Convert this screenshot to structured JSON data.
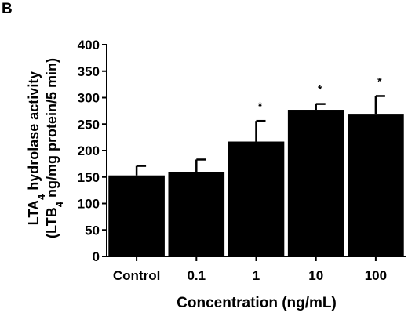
{
  "panel_label": "B",
  "chart_data": {
    "type": "bar",
    "categories": [
      "Control",
      "0.1",
      "1",
      "10",
      "100"
    ],
    "values": [
      153,
      160,
      217,
      277,
      268
    ],
    "errors": [
      18,
      23,
      39,
      11,
      35
    ],
    "significance": [
      "",
      "",
      "*",
      "*",
      "*"
    ],
    "xlabel": "Concentration (ng/mL)",
    "ylabel": {
      "line1_main": "LTA",
      "line1_sub": "4",
      "line1_rest": " hydrolase activity",
      "line2_pre": "(LTB",
      "line2_sub": "4",
      "line2_rest": " ng/mg protein/5 min)"
    },
    "yticks": [
      0,
      50,
      100,
      150,
      200,
      250,
      300,
      350,
      400
    ],
    "ylim": [
      0,
      400
    ],
    "grid": false,
    "bar_color": "#000000"
  }
}
